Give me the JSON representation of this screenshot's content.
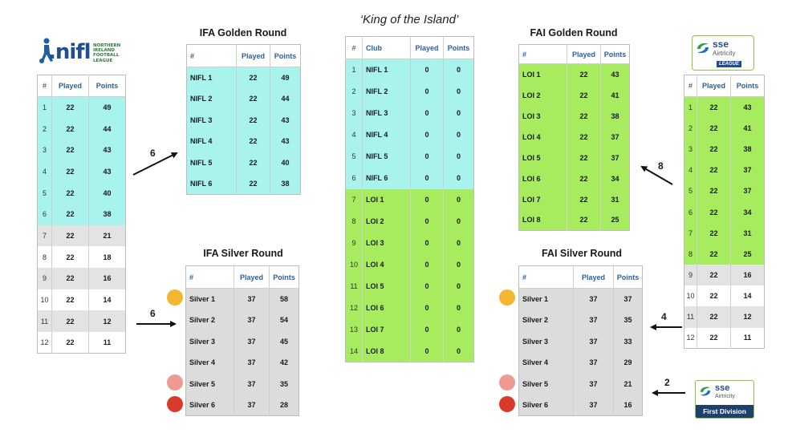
{
  "titles": {
    "ifa_golden": "IFA Golden Round",
    "ifa_silver": "IFA Silver Round",
    "king": "‘King of the Island’",
    "fai_golden": "FAI Golden Round",
    "fai_silver": "FAI Silver Round"
  },
  "headers": {
    "rank": "#",
    "club": "Club",
    "played": "Played",
    "points": "Points"
  },
  "logos": {
    "nifl_main": ".nifl",
    "nifl_small": [
      "NORTHERN",
      "IRELAND",
      "FOOTBALL",
      "LEAGUE"
    ],
    "sse_top": "sse",
    "sse_mid": "Airtricity",
    "sse_league": "LEAGUE",
    "first_top": "sse",
    "first_mid": "Airtricity",
    "first_division": "First Division"
  },
  "arrows": {
    "nifl_to_golden": "6",
    "nifl_to_silver": "6",
    "loi_to_golden": "8",
    "loi_to_silver": "4",
    "first_to_silver": "2"
  },
  "colors": {
    "cyan": "#a8f3ec",
    "green": "#a6ec5e",
    "grey": "#e3e3e3",
    "header_text": "#2c5f9e",
    "dot_gold": "#f2b630",
    "dot_pink": "#ee9a92",
    "dot_red": "#d93a2b"
  },
  "nifl_table": [
    {
      "rank": "1",
      "played": "22",
      "points": "49"
    },
    {
      "rank": "2",
      "played": "22",
      "points": "44"
    },
    {
      "rank": "3",
      "played": "22",
      "points": "43"
    },
    {
      "rank": "4",
      "played": "22",
      "points": "43"
    },
    {
      "rank": "5",
      "played": "22",
      "points": "40"
    },
    {
      "rank": "6",
      "played": "22",
      "points": "38"
    },
    {
      "rank": "7",
      "played": "22",
      "points": "21"
    },
    {
      "rank": "8",
      "played": "22",
      "points": "18"
    },
    {
      "rank": "9",
      "played": "22",
      "points": "16"
    },
    {
      "rank": "10",
      "played": "22",
      "points": "14"
    },
    {
      "rank": "11",
      "played": "22",
      "points": "12"
    },
    {
      "rank": "12",
      "played": "22",
      "points": "11"
    }
  ],
  "loi_table": [
    {
      "rank": "1",
      "played": "22",
      "points": "43"
    },
    {
      "rank": "2",
      "played": "22",
      "points": "41"
    },
    {
      "rank": "3",
      "played": "22",
      "points": "38"
    },
    {
      "rank": "4",
      "played": "22",
      "points": "37"
    },
    {
      "rank": "5",
      "played": "22",
      "points": "37"
    },
    {
      "rank": "6",
      "played": "22",
      "points": "34"
    },
    {
      "rank": "7",
      "played": "22",
      "points": "31"
    },
    {
      "rank": "8",
      "played": "22",
      "points": "25"
    },
    {
      "rank": "9",
      "played": "22",
      "points": "16"
    },
    {
      "rank": "10",
      "played": "22",
      "points": "14"
    },
    {
      "rank": "11",
      "played": "22",
      "points": "12"
    },
    {
      "rank": "12",
      "played": "22",
      "points": "11"
    }
  ],
  "ifa_golden": [
    {
      "club": "NIFL 1",
      "played": "22",
      "points": "49"
    },
    {
      "club": "NIFL 2",
      "played": "22",
      "points": "44"
    },
    {
      "club": "NIFL 3",
      "played": "22",
      "points": "43"
    },
    {
      "club": "NIFL 4",
      "played": "22",
      "points": "43"
    },
    {
      "club": "NIFL 5",
      "played": "22",
      "points": "40"
    },
    {
      "club": "NIFL 6",
      "played": "22",
      "points": "38"
    }
  ],
  "ifa_silver": [
    {
      "club": "Silver 1",
      "played": "37",
      "points": "58"
    },
    {
      "club": "Silver 2",
      "played": "37",
      "points": "54"
    },
    {
      "club": "Silver 3",
      "played": "37",
      "points": "45"
    },
    {
      "club": "Silver 4",
      "played": "37",
      "points": "42"
    },
    {
      "club": "Silver 5",
      "played": "37",
      "points": "35"
    },
    {
      "club": "Silver 6",
      "played": "37",
      "points": "28"
    }
  ],
  "fai_golden": [
    {
      "club": "LOI 1",
      "played": "22",
      "points": "43"
    },
    {
      "club": "LOI 2",
      "played": "22",
      "points": "41"
    },
    {
      "club": "LOI 3",
      "played": "22",
      "points": "38"
    },
    {
      "club": "LOI 4",
      "played": "22",
      "points": "37"
    },
    {
      "club": "LOI 5",
      "played": "22",
      "points": "37"
    },
    {
      "club": "LOI 6",
      "played": "22",
      "points": "34"
    },
    {
      "club": "LOI 7",
      "played": "22",
      "points": "31"
    },
    {
      "club": "LOI 8",
      "played": "22",
      "points": "25"
    }
  ],
  "fai_silver": [
    {
      "club": "Silver 1",
      "played": "37",
      "points": "37"
    },
    {
      "club": "Silver 2",
      "played": "37",
      "points": "35"
    },
    {
      "club": "Silver 3",
      "played": "37",
      "points": "33"
    },
    {
      "club": "Silver 4",
      "played": "37",
      "points": "29"
    },
    {
      "club": "Silver 5",
      "played": "37",
      "points": "21"
    },
    {
      "club": "Silver 6",
      "played": "37",
      "points": "16"
    }
  ],
  "king_table": [
    {
      "rank": "1",
      "club": "NIFL 1",
      "played": "0",
      "points": "0"
    },
    {
      "rank": "2",
      "club": "NIFL 2",
      "played": "0",
      "points": "0"
    },
    {
      "rank": "3",
      "club": "NIFL 3",
      "played": "0",
      "points": "0"
    },
    {
      "rank": "4",
      "club": "NIFL 4",
      "played": "0",
      "points": "0"
    },
    {
      "rank": "5",
      "club": "NIFL 5",
      "played": "0",
      "points": "0"
    },
    {
      "rank": "6",
      "club": "NIFL 6",
      "played": "0",
      "points": "0"
    },
    {
      "rank": "7",
      "club": "LOI 1",
      "played": "0",
      "points": "0"
    },
    {
      "rank": "8",
      "club": "LOI 2",
      "played": "0",
      "points": "0"
    },
    {
      "rank": "9",
      "club": "LOI 3",
      "played": "0",
      "points": "0"
    },
    {
      "rank": "10",
      "club": "LOI 4",
      "played": "0",
      "points": "0"
    },
    {
      "rank": "11",
      "club": "LOI 5",
      "played": "0",
      "points": "0"
    },
    {
      "rank": "12",
      "club": "LOI 6",
      "played": "0",
      "points": "0"
    },
    {
      "rank": "13",
      "club": "LOI 7",
      "played": "0",
      "points": "0"
    },
    {
      "rank": "14",
      "club": "LOI 8",
      "played": "0",
      "points": "0"
    }
  ]
}
